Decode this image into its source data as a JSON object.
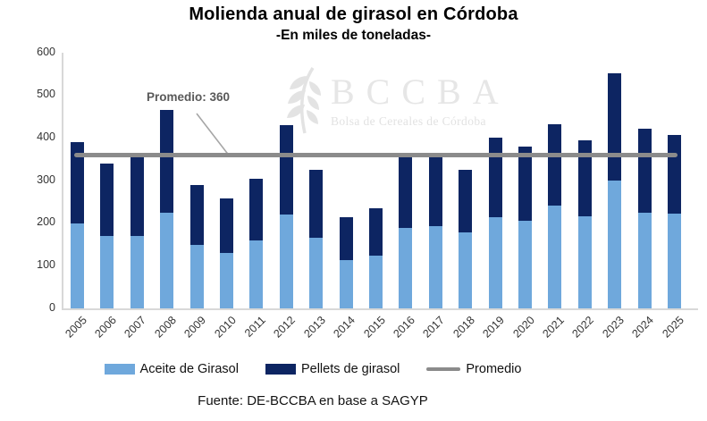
{
  "title": "Molienda anual de girasol en Córdoba",
  "subtitle": "-En miles de toneladas-",
  "footer": "Fuente: DE-BCCBA en base a SAGYP",
  "watermark": {
    "acronym": "BCCBA",
    "name": "Bolsa de Cereales de Córdoba"
  },
  "annotation": {
    "text": "Promedio: 360"
  },
  "legend": [
    {
      "label": "Aceite de Girasol",
      "swatch": "rect",
      "color": "#6FA8DC"
    },
    {
      "label": "Pellets de girasol",
      "swatch": "rect",
      "color": "#0D2562"
    },
    {
      "label": "Promedio",
      "swatch": "line",
      "color": "#8B8B8B"
    }
  ],
  "chart_data": {
    "type": "bar",
    "stacked": true,
    "title": "Molienda anual de girasol en Córdoba",
    "subtitle": "-En miles de toneladas-",
    "unit": "miles de toneladas",
    "categories": [
      "2005",
      "2006",
      "2007",
      "2008",
      "2009",
      "2010",
      "2011",
      "2012",
      "2013",
      "2014",
      "2015",
      "2016",
      "2017",
      "2018",
      "2019",
      "2020",
      "2021",
      "2022",
      "2023",
      "2024",
      "2025"
    ],
    "series": [
      {
        "name": "Aceite de Girasol",
        "color": "#6FA8DC",
        "values": [
          200,
          170,
          170,
          225,
          150,
          130,
          160,
          220,
          165,
          113,
          123,
          188,
          193,
          178,
          213,
          205,
          242,
          216,
          300,
          225,
          223
        ]
      },
      {
        "name": "Pellets de girasol",
        "color": "#0D2562",
        "values": [
          190,
          170,
          185,
          240,
          140,
          128,
          145,
          210,
          160,
          102,
          112,
          167,
          162,
          147,
          187,
          175,
          190,
          178,
          252,
          197,
          185
        ]
      }
    ],
    "totals": [
      390,
      340,
      355,
      465,
      290,
      258,
      305,
      430,
      325,
      215,
      235,
      355,
      355,
      325,
      400,
      380,
      432,
      394,
      552,
      422,
      408
    ],
    "average_line": {
      "name": "Promedio",
      "value": 360,
      "color": "#8B8B8B",
      "annotation": "Promedio: 360"
    },
    "ylim": [
      0,
      600
    ],
    "yticks": [
      0,
      100,
      200,
      300,
      400,
      500,
      600
    ],
    "grid": false,
    "legend_position": "bottom",
    "axis_color": "#D8D8D8"
  }
}
